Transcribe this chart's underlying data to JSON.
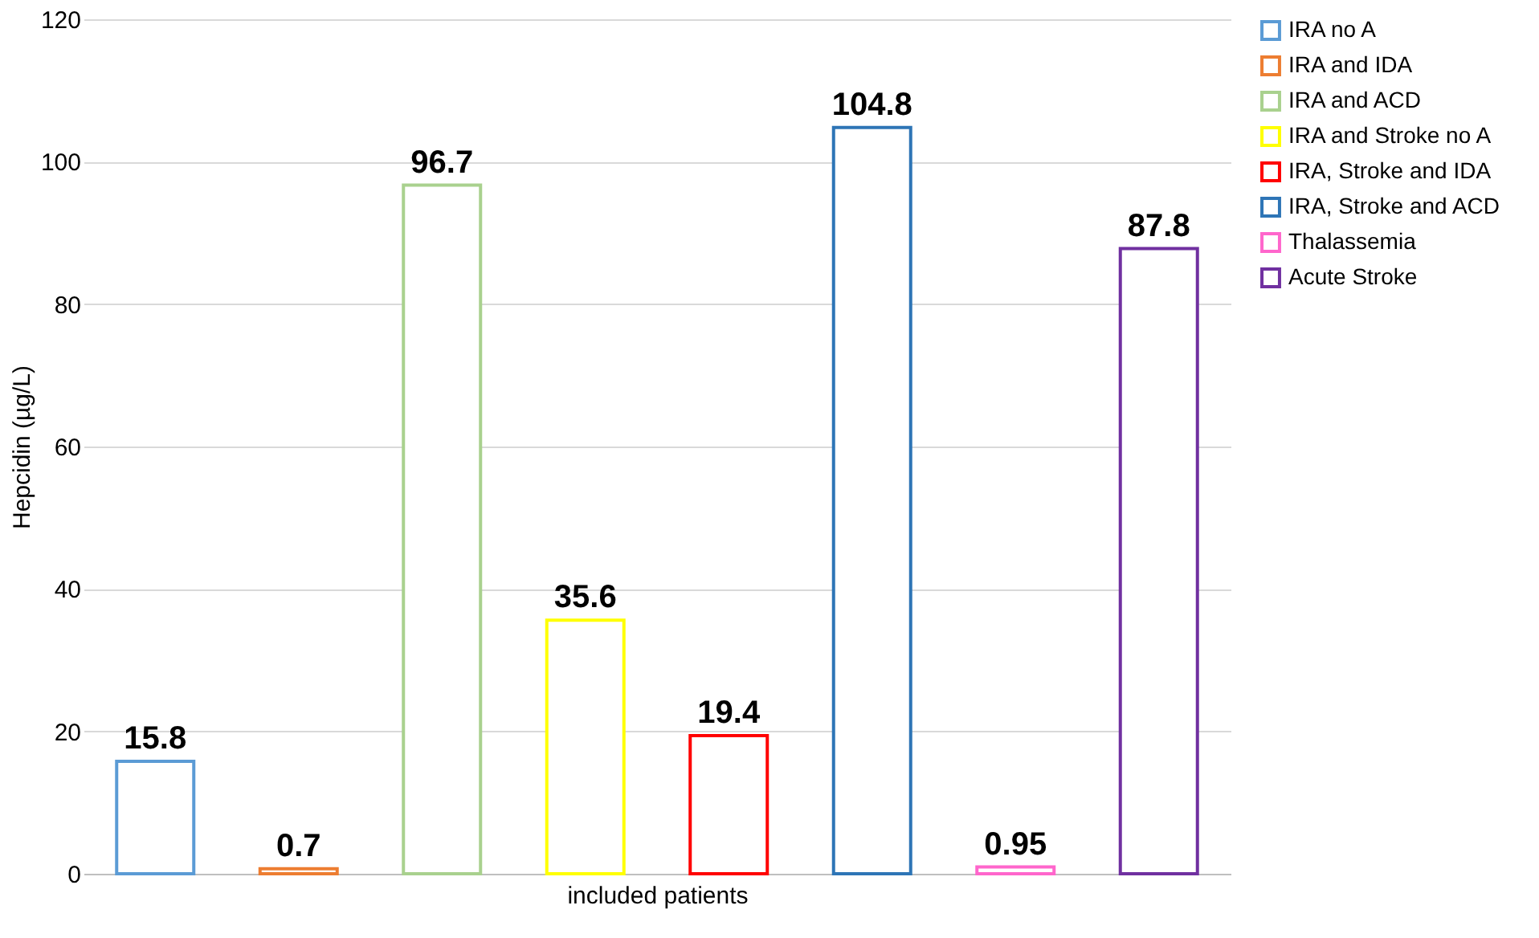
{
  "chart_data": {
    "type": "bar",
    "xlabel": "included patients",
    "ylabel": "Hepcidin (µg/L)",
    "categories": [
      null,
      null,
      null,
      null,
      null,
      null,
      null,
      null
    ],
    "series": [
      {
        "name": "IRA no A",
        "color": "#5b9bd5",
        "values": [
          15.8,
          null,
          null,
          null,
          null,
          null,
          null,
          null
        ]
      },
      {
        "name": "IRA and IDA",
        "color": "#ed7d31",
        "values": [
          null,
          0.7,
          null,
          null,
          null,
          null,
          null,
          null
        ]
      },
      {
        "name": "IRA and ACD",
        "color": "#a9d18e",
        "values": [
          null,
          null,
          96.7,
          null,
          null,
          null,
          null,
          null
        ]
      },
      {
        "name": "IRA and Stroke no A",
        "color": "#ffff00",
        "values": [
          null,
          null,
          null,
          35.6,
          null,
          null,
          null,
          null
        ]
      },
      {
        "name": "IRA, Stroke and IDA",
        "color": "#ff0000",
        "values": [
          null,
          null,
          null,
          null,
          19.4,
          null,
          null,
          null
        ]
      },
      {
        "name": "IRA, Stroke and ACD",
        "color": "#2e75b6",
        "values": [
          null,
          null,
          null,
          null,
          null,
          104.8,
          null,
          null
        ]
      },
      {
        "name": "Thalassemia",
        "color": "#ff66cc",
        "values": [
          null,
          null,
          null,
          null,
          null,
          null,
          0.95,
          null
        ]
      },
      {
        "name": "Acute Stroke",
        "color": "#7030a0",
        "values": [
          null,
          null,
          null,
          null,
          null,
          null,
          null,
          87.8
        ]
      }
    ],
    "ylim": [
      0,
      120
    ],
    "yticks": [
      0,
      20,
      40,
      60,
      80,
      100,
      120
    ],
    "grid": "y",
    "legend": "right",
    "data_labels": true
  }
}
